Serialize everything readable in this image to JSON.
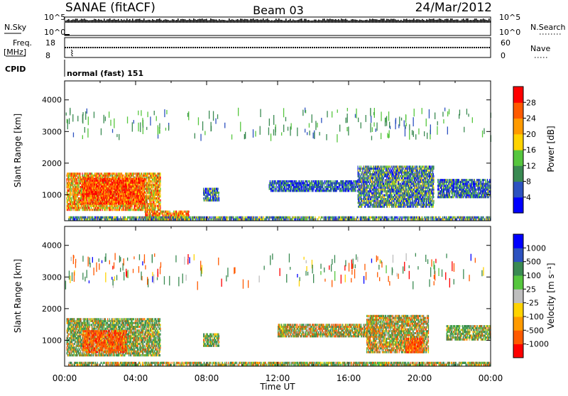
{
  "header": {
    "station": "SANAE (fitACF)",
    "beam": "Beam 03",
    "date": "24/Mar/2012"
  },
  "top_panels": {
    "nsky_label": "N.Sky",
    "nsky_ticks": [
      "10^5",
      "10^0"
    ],
    "nsearch_label": "N.Search",
    "nsearch_ticks": [
      "10^5",
      "10^0"
    ],
    "freq_label_1": "Freq.",
    "freq_label_2": "[MHz]",
    "freq_ticks": [
      "18",
      "8"
    ],
    "nave_label": "Nave",
    "nave_ticks": [
      "60",
      "0"
    ],
    "cpid_label": "CPID",
    "cpid_value": "normal (fast) 151"
  },
  "colors": {
    "power_scale": [
      "#0000ff",
      "#2d52c0",
      "#3a8a52",
      "#56c63e",
      "#ffd300",
      "#ff9a00",
      "#ff5a00",
      "#ff0000"
    ],
    "velocity_scale": [
      "#ff0000",
      "#ff5a00",
      "#ff9a00",
      "#ffd300",
      "#bebebe",
      "#56c63e",
      "#3a8a52",
      "#2d52c0",
      "#0000ff"
    ]
  },
  "chart_data": [
    {
      "type": "heatmap",
      "panel": "power",
      "xlabel": "Time UT",
      "ylabel": "Slant Range [km]",
      "x_ticks": [
        "00:00",
        "04:00",
        "08:00",
        "12:00",
        "16:00",
        "20:00",
        "00:00"
      ],
      "y_ticks": [
        1000,
        2000,
        3000,
        4000
      ],
      "ylim": [
        180,
        4600
      ],
      "xlim_hours": [
        0,
        24
      ],
      "colorbar": {
        "label": "Power [dB]",
        "ticks": [
          "4",
          "8",
          "12",
          "16",
          "20",
          "24",
          "28"
        ],
        "range": [
          0,
          30
        ]
      },
      "regions": [
        {
          "t0": 0.1,
          "t1": 5.4,
          "r0": 500,
          "r1": 1700,
          "value": 20
        },
        {
          "t0": 1.0,
          "t1": 4.5,
          "r0": 700,
          "r1": 1550,
          "value": 26
        },
        {
          "t0": 7.8,
          "t1": 8.7,
          "r0": 800,
          "r1": 1200,
          "value": 8
        },
        {
          "t0": 11.5,
          "t1": 16.5,
          "r0": 1100,
          "r1": 1450,
          "value": 6
        },
        {
          "t0": 16.5,
          "t1": 20.8,
          "r0": 600,
          "r1": 1900,
          "value": 9
        },
        {
          "t0": 21.0,
          "t1": 24.0,
          "r0": 900,
          "r1": 1500,
          "value": 7
        },
        {
          "t0": 4.5,
          "t1": 7.0,
          "r0": 200,
          "r1": 500,
          "value": 22
        },
        {
          "t0": 0.2,
          "t1": 24.0,
          "r0": 200,
          "r1": 330,
          "value": 10
        }
      ]
    },
    {
      "type": "heatmap",
      "panel": "velocity",
      "xlabel": "Time UT",
      "ylabel": "Slant Range [km]",
      "x_ticks": [
        "00:00",
        "04:00",
        "08:00",
        "12:00",
        "16:00",
        "20:00",
        "00:00"
      ],
      "y_ticks": [
        1000,
        2000,
        3000,
        4000
      ],
      "ylim": [
        180,
        4600
      ],
      "xlim_hours": [
        0,
        24
      ],
      "colorbar": {
        "label": "Velocity [m s⁻¹]",
        "ticks": [
          "1000",
          "500",
          "100",
          "25",
          "-25",
          "-100",
          "-500",
          "-1000"
        ]
      },
      "regions": [
        {
          "t0": 0.1,
          "t1": 5.4,
          "r0": 500,
          "r1": 1700,
          "value": 100
        },
        {
          "t0": 1.0,
          "t1": 3.5,
          "r0": 600,
          "r1": 1300,
          "value": -300
        },
        {
          "t0": 7.8,
          "t1": 8.7,
          "r0": 800,
          "r1": 1200,
          "value": 150
        },
        {
          "t0": 12.0,
          "t1": 17.5,
          "r0": 1100,
          "r1": 1500,
          "value": 0
        },
        {
          "t0": 17.0,
          "t1": 20.5,
          "r0": 600,
          "r1": 1800,
          "value": 0
        },
        {
          "t0": 19.2,
          "t1": 20.2,
          "r0": 600,
          "r1": 1100,
          "value": -300
        },
        {
          "t0": 21.5,
          "t1": 24.0,
          "r0": 1000,
          "r1": 1500,
          "value": 120
        },
        {
          "t0": 0.2,
          "t1": 24.0,
          "r0": 200,
          "r1": 330,
          "value": 60
        }
      ]
    }
  ]
}
